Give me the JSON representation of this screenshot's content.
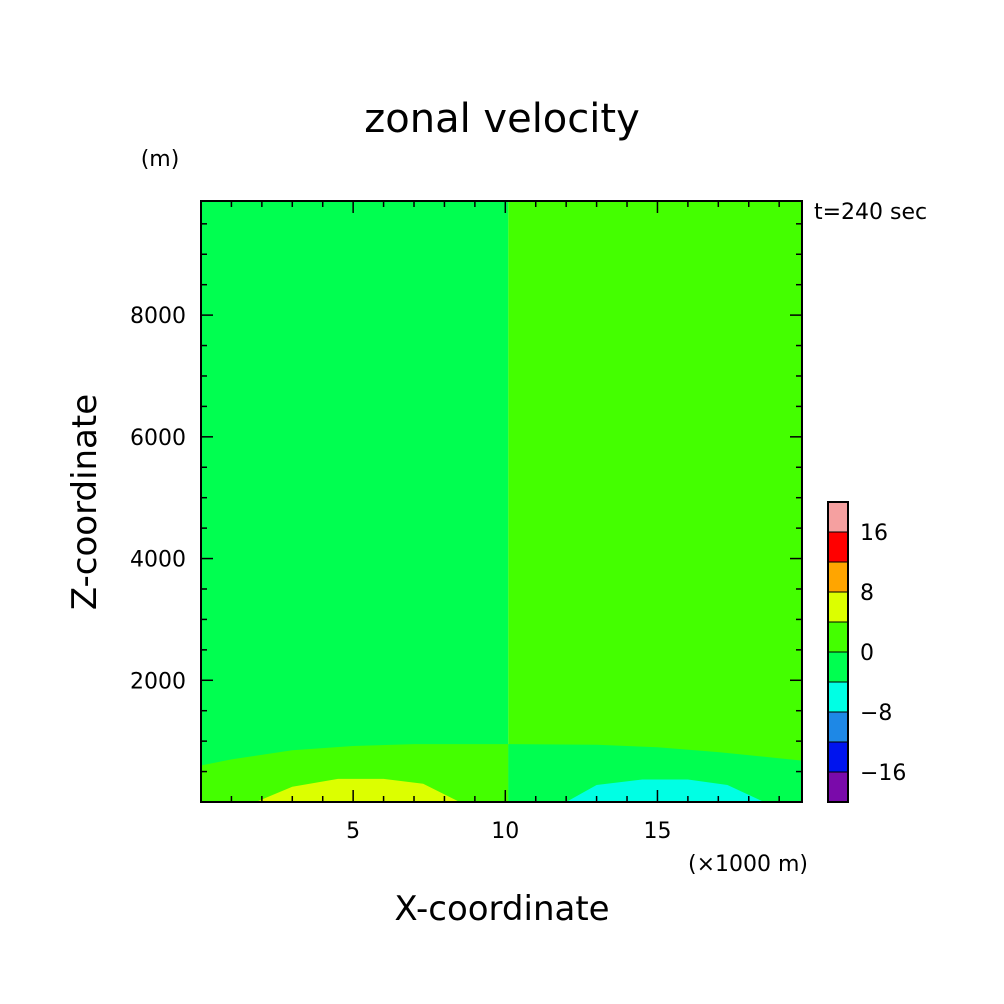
{
  "chart_data": {
    "type": "heatmap",
    "title": "zonal velocity",
    "xlabel": "X-coordinate",
    "ylabel": "Z-coordinate",
    "x_units": "(×1000 m)",
    "y_units": "(m)",
    "annotation": "t=240 sec",
    "xlim": [
      0,
      19.75
    ],
    "ylim": [
      0,
      9875
    ],
    "x_ticks": [
      {
        "value": 5,
        "label": "5"
      },
      {
        "value": 10,
        "label": "10"
      },
      {
        "value": 15,
        "label": "15"
      }
    ],
    "y_ticks": [
      {
        "value": 2000,
        "label": "2000"
      },
      {
        "value": 4000,
        "label": "4000"
      },
      {
        "value": 6000,
        "label": "6000"
      },
      {
        "value": 8000,
        "label": "8000"
      }
    ],
    "colorbar": {
      "levels": [
        -20,
        -16,
        -12,
        -8,
        -4,
        0,
        4,
        8,
        12,
        16,
        20
      ],
      "colors": [
        "#7a0aaa",
        "#0014ee",
        "#1e88e6",
        "#00ffe4",
        "#00ff50",
        "#44ff00",
        "#dcff00",
        "#ffa500",
        "#ff0000",
        "#f5a0a0"
      ],
      "labeled_levels": [
        {
          "value": -16,
          "label": "−16"
        },
        {
          "value": -8,
          "label": "−8"
        },
        {
          "value": 0,
          "label": "0"
        },
        {
          "value": 8,
          "label": "8"
        },
        {
          "value": 16,
          "label": "16"
        }
      ]
    },
    "regions": [
      {
        "name": "left-domain",
        "value_range": [
          -4,
          0
        ],
        "color": "#00ff50",
        "x_range": [
          0,
          10.1
        ],
        "z_range": [
          0,
          9875
        ]
      },
      {
        "name": "right-domain",
        "value_range": [
          0,
          4
        ],
        "color": "#44ff00",
        "x_range": [
          10.1,
          19.75
        ],
        "z_range": [
          0,
          9875
        ]
      },
      {
        "name": "left-surface-layer",
        "value_range": [
          0,
          4
        ],
        "color": "#44ff00",
        "x_range": [
          0,
          10.1
        ],
        "z_top_at_x": [
          [
            0,
            600
          ],
          [
            1,
            700
          ],
          [
            3,
            850
          ],
          [
            5,
            920
          ],
          [
            7,
            950
          ],
          [
            10.1,
            950
          ]
        ]
      },
      {
        "name": "right-surface-layer",
        "value_range": [
          -4,
          0
        ],
        "color": "#00ff50",
        "x_range": [
          10.1,
          19.75
        ],
        "z_top_at_x": [
          [
            10.1,
            950
          ],
          [
            13,
            940
          ],
          [
            15,
            900
          ],
          [
            17,
            820
          ],
          [
            19.75,
            680
          ]
        ]
      },
      {
        "name": "positive-core",
        "value_range": [
          4,
          8
        ],
        "color": "#dcff00",
        "x_range": [
          1.8,
          8.5
        ],
        "z_top_at_x": [
          [
            1.8,
            0
          ],
          [
            3,
            250
          ],
          [
            4.5,
            380
          ],
          [
            6,
            380
          ],
          [
            7.3,
            300
          ],
          [
            8.5,
            0
          ]
        ]
      },
      {
        "name": "negative-core",
        "value_range": [
          -8,
          -4
        ],
        "color": "#00ffe4",
        "x_range": [
          12,
          18.5
        ],
        "z_top_at_x": [
          [
            12,
            0
          ],
          [
            13,
            280
          ],
          [
            14.5,
            370
          ],
          [
            16,
            370
          ],
          [
            17.3,
            280
          ],
          [
            18.5,
            0
          ]
        ]
      }
    ]
  }
}
